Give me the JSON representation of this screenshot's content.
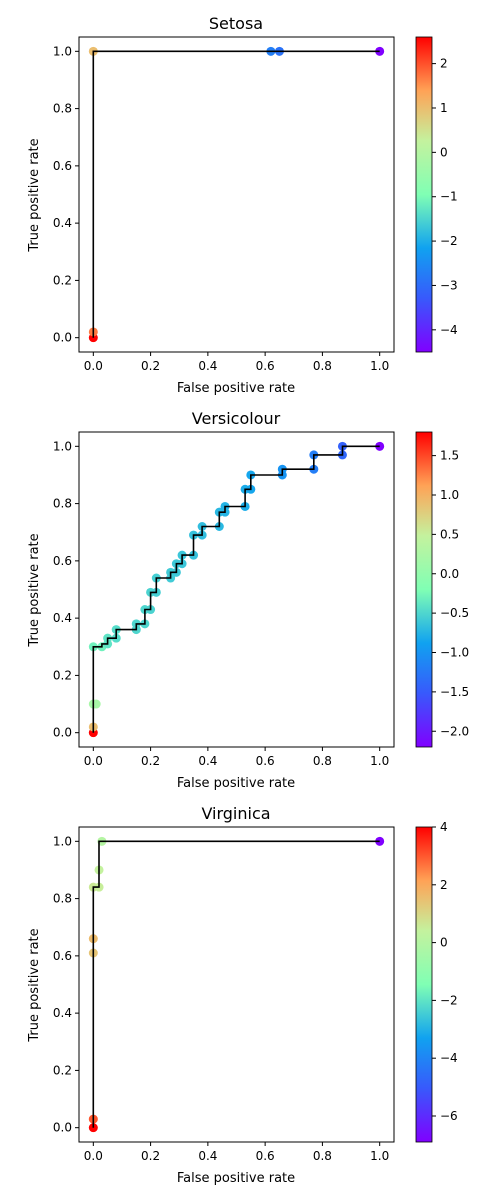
{
  "chart_data": [
    {
      "type": "scatter",
      "title": "Setosa",
      "xlabel": "False positive rate",
      "ylabel": "True positive rate",
      "xlim": [
        -0.05,
        1.05
      ],
      "ylim": [
        -0.05,
        1.05
      ],
      "xticks": [
        "0.0",
        "0.2",
        "0.4",
        "0.6",
        "0.8",
        "1.0"
      ],
      "yticks": [
        "0.0",
        "0.2",
        "0.4",
        "0.6",
        "0.8",
        "1.0"
      ],
      "colorbar": {
        "min": -4.5,
        "max": 2.6,
        "ticks": [
          "2",
          "1",
          "0",
          "−1",
          "−2",
          "−3",
          "−4"
        ]
      },
      "roc_path": [
        [
          0,
          0
        ],
        [
          0,
          0.02
        ],
        [
          0,
          1.0
        ],
        [
          1.0,
          1.0
        ]
      ],
      "points": [
        {
          "x": 0.0,
          "y": 0.0,
          "c": 2.6
        },
        {
          "x": 0.0,
          "y": 0.02,
          "c": 1.7
        },
        {
          "x": 0.0,
          "y": 1.0,
          "c": 1.0
        },
        {
          "x": 0.62,
          "y": 1.0,
          "c": -2.7
        },
        {
          "x": 0.65,
          "y": 1.0,
          "c": -2.9
        },
        {
          "x": 1.0,
          "y": 1.0,
          "c": -4.5
        }
      ]
    },
    {
      "type": "scatter",
      "title": "Versicolour",
      "xlabel": "False positive rate",
      "ylabel": "True positive rate",
      "xlim": [
        -0.05,
        1.05
      ],
      "ylim": [
        -0.05,
        1.05
      ],
      "xticks": [
        "0.0",
        "0.2",
        "0.4",
        "0.6",
        "0.8",
        "1.0"
      ],
      "yticks": [
        "0.0",
        "0.2",
        "0.4",
        "0.6",
        "0.8",
        "1.0"
      ],
      "colorbar": {
        "min": -2.2,
        "max": 1.8,
        "ticks": [
          "1.5",
          "1.0",
          "0.5",
          "0.0",
          "−0.5",
          "−1.0",
          "−1.5",
          "−2.0"
        ]
      },
      "roc_path": [
        [
          0,
          0
        ],
        [
          0,
          0.1
        ],
        [
          0,
          0.3
        ],
        [
          0.03,
          0.3
        ],
        [
          0.03,
          0.31
        ],
        [
          0.05,
          0.31
        ],
        [
          0.05,
          0.33
        ],
        [
          0.08,
          0.33
        ],
        [
          0.08,
          0.36
        ],
        [
          0.15,
          0.36
        ],
        [
          0.15,
          0.38
        ],
        [
          0.18,
          0.38
        ],
        [
          0.18,
          0.43
        ],
        [
          0.2,
          0.43
        ],
        [
          0.2,
          0.49
        ],
        [
          0.22,
          0.49
        ],
        [
          0.22,
          0.54
        ],
        [
          0.27,
          0.54
        ],
        [
          0.27,
          0.56
        ],
        [
          0.29,
          0.56
        ],
        [
          0.29,
          0.59
        ],
        [
          0.31,
          0.59
        ],
        [
          0.31,
          0.62
        ],
        [
          0.35,
          0.62
        ],
        [
          0.35,
          0.69
        ],
        [
          0.38,
          0.69
        ],
        [
          0.38,
          0.72
        ],
        [
          0.44,
          0.72
        ],
        [
          0.44,
          0.77
        ],
        [
          0.46,
          0.77
        ],
        [
          0.46,
          0.79
        ],
        [
          0.53,
          0.79
        ],
        [
          0.53,
          0.85
        ],
        [
          0.55,
          0.85
        ],
        [
          0.55,
          0.9
        ],
        [
          0.66,
          0.9
        ],
        [
          0.66,
          0.92
        ],
        [
          0.77,
          0.92
        ],
        [
          0.77,
          0.97
        ],
        [
          0.87,
          0.97
        ],
        [
          0.87,
          1.0
        ],
        [
          1.0,
          1.0
        ]
      ],
      "points": [
        {
          "x": 0.0,
          "y": 0.0,
          "c": 1.8
        },
        {
          "x": 0.0,
          "y": 0.02,
          "c": 0.9
        },
        {
          "x": 0.0,
          "y": 0.1,
          "c": 0.2
        },
        {
          "x": 0.01,
          "y": 0.1,
          "c": 0.2
        },
        {
          "x": 0.0,
          "y": 0.3,
          "c": -0.3
        },
        {
          "x": 0.03,
          "y": 0.3,
          "c": -0.3
        },
        {
          "x": 0.05,
          "y": 0.31,
          "c": -0.4
        },
        {
          "x": 0.05,
          "y": 0.33,
          "c": -0.4
        },
        {
          "x": 0.08,
          "y": 0.33,
          "c": -0.45
        },
        {
          "x": 0.08,
          "y": 0.36,
          "c": -0.45
        },
        {
          "x": 0.15,
          "y": 0.36,
          "c": -0.5
        },
        {
          "x": 0.15,
          "y": 0.38,
          "c": -0.5
        },
        {
          "x": 0.18,
          "y": 0.38,
          "c": -0.5
        },
        {
          "x": 0.18,
          "y": 0.43,
          "c": -0.5
        },
        {
          "x": 0.2,
          "y": 0.43,
          "c": -0.52
        },
        {
          "x": 0.2,
          "y": 0.49,
          "c": -0.52
        },
        {
          "x": 0.22,
          "y": 0.49,
          "c": -0.55
        },
        {
          "x": 0.22,
          "y": 0.54,
          "c": -0.55
        },
        {
          "x": 0.27,
          "y": 0.54,
          "c": -0.58
        },
        {
          "x": 0.27,
          "y": 0.56,
          "c": -0.58
        },
        {
          "x": 0.29,
          "y": 0.56,
          "c": -0.6
        },
        {
          "x": 0.29,
          "y": 0.59,
          "c": -0.6
        },
        {
          "x": 0.31,
          "y": 0.59,
          "c": -0.62
        },
        {
          "x": 0.31,
          "y": 0.62,
          "c": -0.62
        },
        {
          "x": 0.35,
          "y": 0.62,
          "c": -0.65
        },
        {
          "x": 0.35,
          "y": 0.69,
          "c": -0.65
        },
        {
          "x": 0.38,
          "y": 0.69,
          "c": -0.68
        },
        {
          "x": 0.38,
          "y": 0.72,
          "c": -0.68
        },
        {
          "x": 0.44,
          "y": 0.72,
          "c": -0.72
        },
        {
          "x": 0.44,
          "y": 0.77,
          "c": -0.72
        },
        {
          "x": 0.46,
          "y": 0.77,
          "c": -0.75
        },
        {
          "x": 0.46,
          "y": 0.79,
          "c": -0.75
        },
        {
          "x": 0.53,
          "y": 0.79,
          "c": -0.8
        },
        {
          "x": 0.53,
          "y": 0.85,
          "c": -0.8
        },
        {
          "x": 0.55,
          "y": 0.85,
          "c": -0.85
        },
        {
          "x": 0.55,
          "y": 0.9,
          "c": -0.85
        },
        {
          "x": 0.66,
          "y": 0.9,
          "c": -1.0
        },
        {
          "x": 0.66,
          "y": 0.92,
          "c": -1.0
        },
        {
          "x": 0.77,
          "y": 0.92,
          "c": -1.2
        },
        {
          "x": 0.77,
          "y": 0.97,
          "c": -1.2
        },
        {
          "x": 0.87,
          "y": 0.97,
          "c": -1.4
        },
        {
          "x": 0.87,
          "y": 1.0,
          "c": -1.45
        },
        {
          "x": 1.0,
          "y": 1.0,
          "c": -2.2
        }
      ]
    },
    {
      "type": "scatter",
      "title": "Virginica",
      "xlabel": "False positive rate",
      "ylabel": "True positive rate",
      "xlim": [
        -0.05,
        1.05
      ],
      "ylim": [
        -0.05,
        1.05
      ],
      "xticks": [
        "0.0",
        "0.2",
        "0.4",
        "0.6",
        "0.8",
        "1.0"
      ],
      "yticks": [
        "0.0",
        "0.2",
        "0.4",
        "0.6",
        "0.8",
        "1.0"
      ],
      "colorbar": {
        "min": -6.9,
        "max": 4.0,
        "ticks": [
          "4",
          "2",
          "0",
          "−2",
          "−4",
          "−6"
        ]
      },
      "roc_path": [
        [
          0,
          0
        ],
        [
          0,
          0.03
        ],
        [
          0,
          0.84
        ],
        [
          0.02,
          0.84
        ],
        [
          0.02,
          0.9
        ],
        [
          0.02,
          1.0
        ],
        [
          1.0,
          1.0
        ]
      ],
      "points": [
        {
          "x": 0.0,
          "y": 0.0,
          "c": 4.0
        },
        {
          "x": 0.0,
          "y": 0.03,
          "c": 3.0
        },
        {
          "x": 0.0,
          "y": 0.61,
          "c": 1.4
        },
        {
          "x": 0.0,
          "y": 0.66,
          "c": 1.6
        },
        {
          "x": 0.0,
          "y": 0.84,
          "c": 0.6
        },
        {
          "x": 0.02,
          "y": 0.84,
          "c": 0.5
        },
        {
          "x": 0.02,
          "y": 0.9,
          "c": 0.4
        },
        {
          "x": 0.03,
          "y": 1.0,
          "c": 0.0
        },
        {
          "x": 1.0,
          "y": 1.0,
          "c": -6.9
        }
      ]
    }
  ]
}
